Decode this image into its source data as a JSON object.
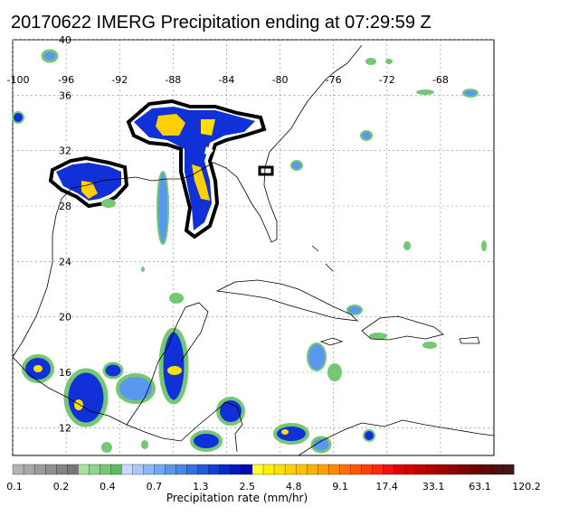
{
  "title": "20170622 IMERG Precipitation ending at 07:29:59 Z",
  "map": {
    "lon_range": [
      -100,
      -64
    ],
    "lat_range": [
      10,
      40
    ],
    "lon_ticks": [
      "-100",
      "-96",
      "-92",
      "-88",
      "-84",
      "-80",
      "-76",
      "-72",
      "-68"
    ],
    "lat_ticks": [
      "40",
      "36",
      "32",
      "28",
      "24",
      "20",
      "16",
      "12"
    ],
    "grid": true
  },
  "colorbar": {
    "title": "Precipitation rate (mm/hr)",
    "labels": [
      "0.1",
      "0.2",
      "0.4",
      "0.7",
      "1.3",
      "2.5",
      "4.8",
      "9.1",
      "17.4",
      "33.1",
      "63.1",
      "120.2"
    ],
    "colors": [
      "#b4b4b4",
      "#a8a8a8",
      "#9c9c9c",
      "#909090",
      "#848484",
      "#787878",
      "#a8e0a0",
      "#8ed48a",
      "#74c874",
      "#5cbc60",
      "#c8d8ff",
      "#aac8ff",
      "#8cb8ff",
      "#6ea8ff",
      "#5a98f0",
      "#4488e8",
      "#3070e8",
      "#2058e0",
      "#1040d8",
      "#0828d0",
      "#0818c0",
      "#0808b0",
      "#ffff30",
      "#fff000",
      "#ffe000",
      "#ffd000",
      "#ffc000",
      "#ffb000",
      "#ffa000",
      "#ff8800",
      "#ff7000",
      "#ff5800",
      "#ff4000",
      "#ff2800",
      "#f01010",
      "#e00000",
      "#d00000",
      "#c00000",
      "#b00000",
      "#a00000",
      "#900000",
      "#800000",
      "#700000",
      "#600808",
      "#501010",
      "#401818"
    ]
  }
}
